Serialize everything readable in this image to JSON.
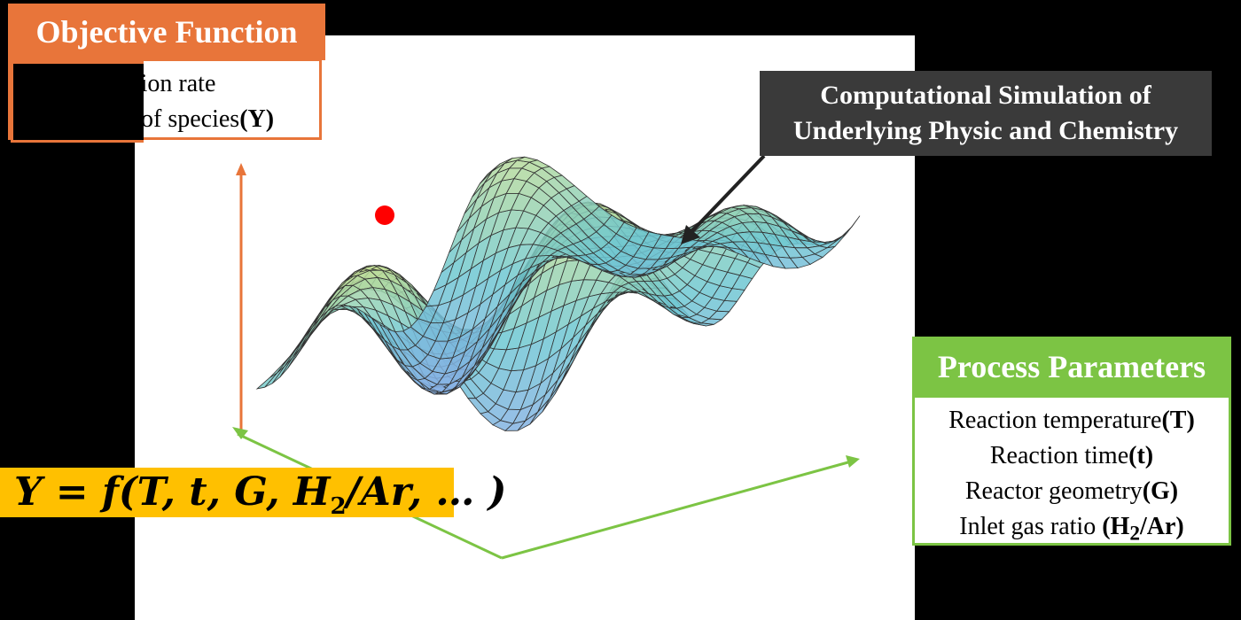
{
  "objective": {
    "title": "Objective Function",
    "line1": "ersion rate",
    "line2_text": "y of species",
    "line2_bold": "(Y)"
  },
  "simulation": {
    "line1": "Computational Simulation of",
    "line2": "Underlying Physic and Chemistry"
  },
  "process": {
    "title": "Process Parameters",
    "items": [
      {
        "text": "Reaction temperature",
        "bold": "(T)"
      },
      {
        "text": "Reaction time",
        "bold": "(t)"
      },
      {
        "text": "Reactor geometry",
        "bold": "(G)"
      },
      {
        "text": "Inlet gas ratio ",
        "bold_pre": "(H",
        "bold_sub": "2",
        "bold_post": "/Ar)"
      }
    ]
  },
  "equation": {
    "lhs": "Y",
    "eq": " = ",
    "fn": "f",
    "open": "(",
    "args": "T, t, G, H",
    "sub": "2",
    "rest": "/Ar, … )"
  },
  "colors": {
    "objective": "#E8753A",
    "process": "#7CC444",
    "simulation": "#3a3a3a",
    "equation": "#FFC000",
    "optimum_point": "#FF0000"
  }
}
